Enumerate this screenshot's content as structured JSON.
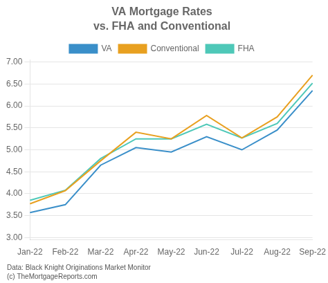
{
  "chart_data": {
    "type": "line",
    "title": "VA Mortgage Rates",
    "subtitle": "vs. FHA and Conventional",
    "categories": [
      "Jan-22",
      "Feb-22",
      "Mar-22",
      "Apr-22",
      "May-22",
      "Jun-22",
      "Jul-22",
      "Aug-22",
      "Sep-22"
    ],
    "series": [
      {
        "name": "VA",
        "color": "#3a8fc9",
        "values": [
          3.57,
          3.75,
          4.65,
          5.05,
          4.95,
          5.3,
          5.0,
          5.45,
          6.35
        ]
      },
      {
        "name": "Conventional",
        "color": "#e8a020",
        "values": [
          3.77,
          4.07,
          4.75,
          5.4,
          5.25,
          5.78,
          5.27,
          5.75,
          6.7
        ]
      },
      {
        "name": "FHA",
        "color": "#4ec8b8",
        "values": [
          3.85,
          4.08,
          4.8,
          5.25,
          5.25,
          5.58,
          5.27,
          5.6,
          6.52
        ]
      }
    ],
    "ylim": [
      2.95,
      7.05
    ],
    "yticks": [
      {
        "value": 3.0,
        "label": "3.00"
      },
      {
        "value": 3.5,
        "label": "3.50"
      },
      {
        "value": 4.0,
        "label": "4.00"
      },
      {
        "value": 4.5,
        "label": "4.50"
      },
      {
        "value": 5.0,
        "label": "5.00"
      },
      {
        "value": 5.5,
        "label": "5.50"
      },
      {
        "value": 6.0,
        "label": "6.00"
      },
      {
        "value": 6.5,
        "label": "6.50"
      },
      {
        "value": 7.0,
        "label": "7.00"
      }
    ],
    "grid": true,
    "legend": "top",
    "annotations": [
      "Data: Black Knight Originations Market Monitor",
      "(c) TheMortgageReports.com"
    ]
  }
}
